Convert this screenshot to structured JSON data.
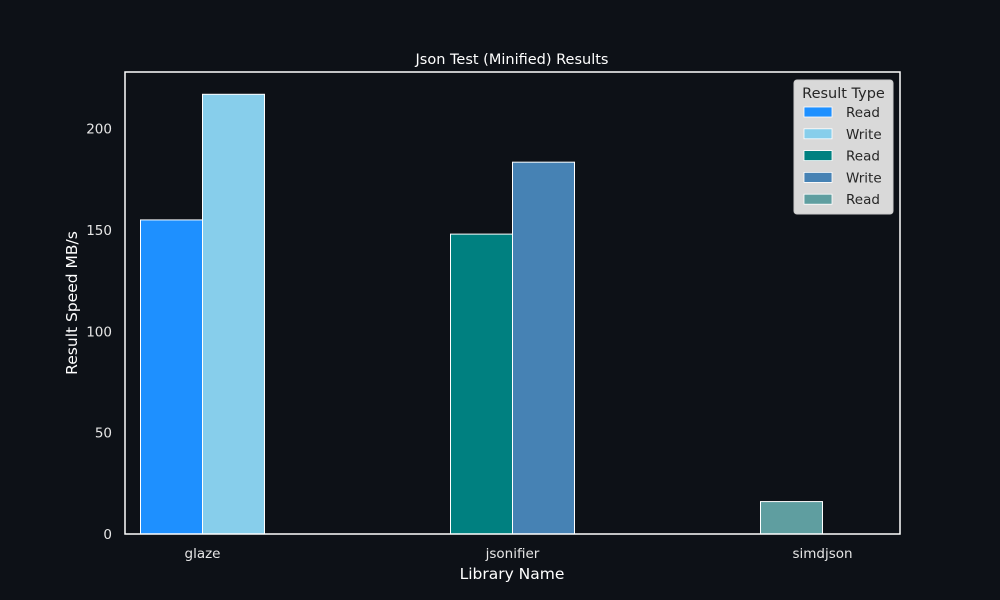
{
  "chart_data": {
    "type": "bar",
    "title": "Json Test (Minified) Results",
    "xlabel": "Library Name",
    "ylabel": "Result Speed MB/s",
    "categories": [
      "glaze",
      "jsonifier",
      "simdjson"
    ],
    "ylim": [
      0,
      228
    ],
    "yticks": [
      0,
      50,
      100,
      150,
      200
    ],
    "grid": false,
    "legend": {
      "title": "Result Type",
      "placement": "top-right"
    },
    "bars": [
      {
        "category": "glaze",
        "result_type": "Read",
        "value": 155,
        "color": "#1e90ff"
      },
      {
        "category": "glaze",
        "result_type": "Write",
        "value": 217,
        "color": "#87ceeb"
      },
      {
        "category": "jsonifier",
        "result_type": "Read",
        "value": 148,
        "color": "#008080"
      },
      {
        "category": "jsonifier",
        "result_type": "Write",
        "value": 183.5,
        "color": "#4682b4"
      },
      {
        "category": "simdjson",
        "result_type": "Read",
        "value": 16,
        "color": "#5f9ea0"
      }
    ],
    "colors": {
      "background": "#0d1117",
      "axes": "#ffffff",
      "bar_edge": "#ffffff",
      "legend_bg": "#d9d9d9"
    }
  }
}
